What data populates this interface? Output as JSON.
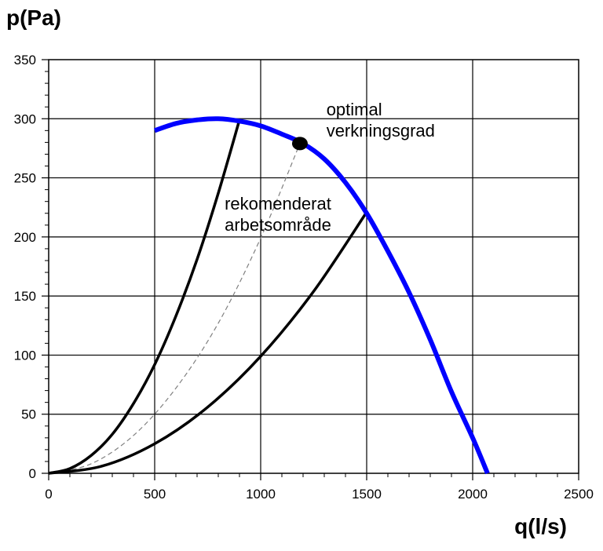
{
  "chart_data": {
    "type": "line",
    "title": "",
    "xlabel": "q(l/s)",
    "ylabel": "p(Pa)",
    "xlim": [
      0,
      2500
    ],
    "ylim": [
      0,
      350
    ],
    "x_major_ticks": [
      0,
      500,
      1000,
      1500,
      2000,
      2500
    ],
    "y_major_ticks": [
      0,
      50,
      100,
      150,
      200,
      250,
      300,
      350
    ],
    "x_tick_labels": [
      "0",
      "500",
      "1000",
      "1500",
      "2000",
      "2500"
    ],
    "y_tick_labels": [
      "0",
      "50",
      "100",
      "150",
      "200",
      "250",
      "300",
      "350"
    ],
    "grid": true,
    "colors": {
      "fan_curve": "#0000ff",
      "system_curves": "#000000",
      "optimal_curve": "#808080",
      "grid": "#000000"
    },
    "series": [
      {
        "style": "fan-curve",
        "x": [
          500,
          600,
          700,
          800,
          900,
          1000,
          1100,
          1200,
          1300,
          1400,
          1500,
          1600,
          1700,
          1800,
          1900,
          2000,
          2070
        ],
        "y": [
          290,
          296,
          299,
          300,
          298,
          294,
          287,
          279,
          266,
          246,
          220,
          188,
          153,
          113,
          69,
          30,
          0
        ]
      },
      {
        "style": "system-curve-steep",
        "x": [
          0,
          100,
          200,
          300,
          400,
          500,
          600,
          700,
          800,
          900
        ],
        "y": [
          0,
          4,
          15,
          33,
          59,
          92,
          133,
          181,
          237,
          299
        ]
      },
      {
        "style": "system-curve-optimal",
        "x": [
          0,
          200,
          400,
          600,
          800,
          1000,
          1185
        ],
        "y": [
          0,
          8,
          32,
          72,
          127,
          199,
          279
        ]
      },
      {
        "style": "system-curve-flat",
        "x": [
          0,
          250,
          500,
          750,
          1000,
          1250,
          1500
        ],
        "y": [
          0,
          6,
          25,
          56,
          99,
          154,
          221
        ]
      }
    ],
    "points": [
      {
        "x": 1185,
        "y": 279
      }
    ],
    "annotations": [
      {
        "lines": [
          "optimal",
          "verkningsgrad"
        ],
        "x": 1310,
        "y": 303
      },
      {
        "lines": [
          "rekomenderat",
          "arbetsområde"
        ],
        "x": 830,
        "y": 223
      }
    ]
  }
}
